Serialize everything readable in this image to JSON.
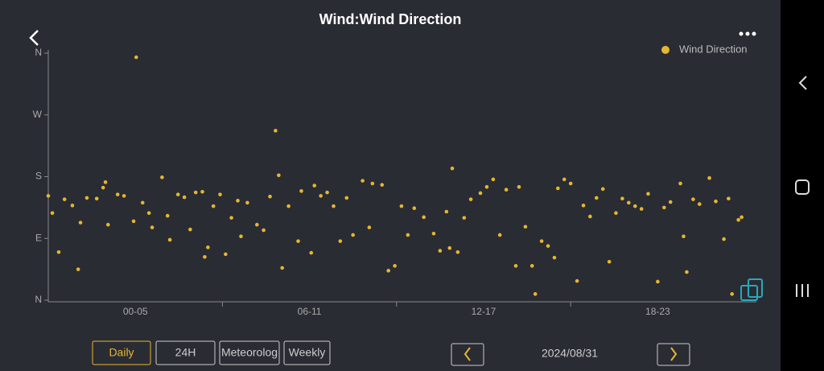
{
  "chart_data": {
    "type": "scatter",
    "title": "Wind:Wind Direction",
    "series": [
      {
        "name": "Wind Direction",
        "color": "#e6b632",
        "x": [
          0.0,
          0.14,
          0.36,
          0.56,
          0.83,
          1.03,
          1.11,
          1.33,
          1.67,
          1.89,
          1.97,
          2.06,
          2.39,
          2.61,
          2.94,
          3.03,
          3.25,
          3.47,
          3.58,
          3.92,
          4.11,
          4.19,
          4.47,
          4.69,
          4.89,
          5.08,
          5.31,
          5.39,
          5.5,
          5.69,
          5.92,
          6.11,
          6.31,
          6.53,
          6.64,
          6.86,
          7.19,
          7.42,
          7.64,
          7.83,
          7.94,
          8.06,
          8.28,
          8.61,
          8.72,
          9.06,
          9.17,
          9.39,
          9.61,
          9.83,
          10.06,
          10.28,
          10.5,
          10.83,
          11.06,
          11.17,
          11.5,
          11.72,
          11.94,
          12.17,
          12.39,
          12.61,
          12.94,
          13.28,
          13.5,
          13.72,
          13.83,
          13.92,
          14.11,
          14.33,
          14.56,
          14.89,
          15.11,
          15.33,
          15.56,
          15.78,
          16.11,
          16.22,
          16.44,
          16.67,
          16.78,
          17.0,
          17.22,
          17.44,
          17.56,
          17.78,
          18.0,
          18.22,
          18.44,
          18.67,
          18.89,
          19.11,
          19.33,
          19.56,
          19.78,
          20.0,
          20.22,
          20.44,
          20.67,
          21.0,
          21.22,
          21.44,
          21.78,
          21.89,
          22.0,
          22.22,
          22.44,
          22.78,
          23.0,
          23.28,
          23.44,
          23.56,
          23.78,
          23.89
        ],
        "values": [
          152,
          127,
          70,
          147,
          138,
          45,
          113,
          149,
          148,
          164,
          172,
          110,
          154,
          152,
          115,
          354,
          142,
          127,
          106,
          179,
          123,
          88,
          154,
          150,
          103,
          157,
          158,
          63,
          77,
          137,
          154,
          67,
          120,
          145,
          93,
          142,
          110,
          102,
          151,
          247,
          182,
          47,
          137,
          86,
          159,
          69,
          167,
          152,
          157,
          137,
          86,
          149,
          95,
          174,
          106,
          170,
          168,
          43,
          50,
          137,
          95,
          134,
          121,
          97,
          72,
          129,
          76,
          192,
          70,
          120,
          147,
          156,
          165,
          176,
          95,
          161,
          50,
          165,
          107,
          50,
          9,
          86,
          79,
          62,
          163,
          176,
          170,
          28,
          138,
          122,
          149,
          162,
          56,
          127,
          148,
          142,
          137,
          133,
          155,
          27,
          135,
          143,
          170,
          93,
          41,
          147,
          140,
          178,
          144,
          89,
          148,
          9,
          117,
          121
        ]
      }
    ],
    "xlim": [
      0,
      24.4
    ],
    "xticks": [
      {
        "value": 3,
        "label": "00-05"
      },
      {
        "value": 9,
        "label": "06-11"
      },
      {
        "value": 15,
        "label": "12-17"
      },
      {
        "value": 21,
        "label": "18-23"
      }
    ],
    "ylim": [
      0,
      360
    ],
    "yticks": [
      {
        "value": 0,
        "label": "N"
      },
      {
        "value": 90,
        "label": "E"
      },
      {
        "value": 180,
        "label": "S"
      },
      {
        "value": 270,
        "label": "W"
      },
      {
        "value": 360,
        "label": "N"
      }
    ],
    "legend": "top-right"
  },
  "controls": {
    "tabs": [
      "Daily",
      "24H",
      "Meteorolog",
      "Weekly"
    ],
    "date": "2024/08/31"
  }
}
